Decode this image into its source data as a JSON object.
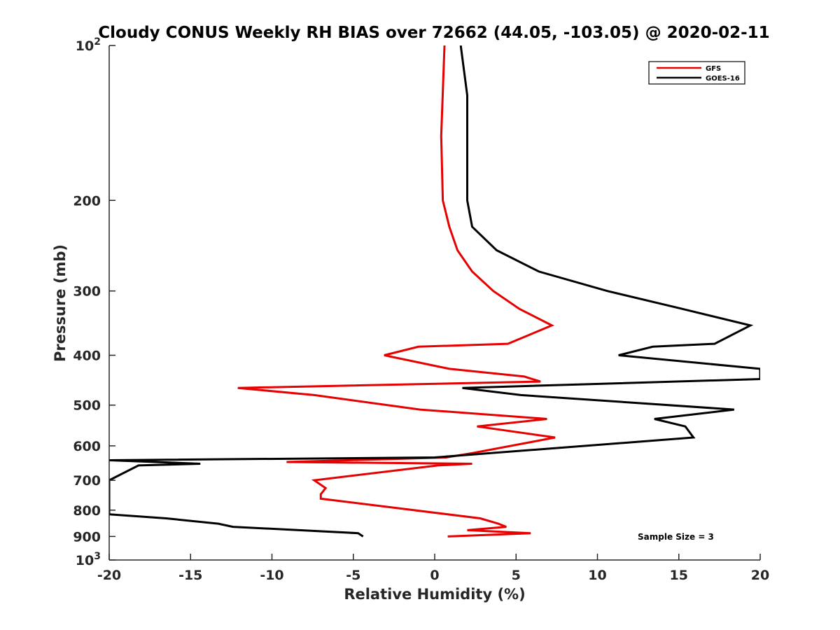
{
  "chart_data": {
    "type": "line",
    "title": "Cloudy CONUS Weekly RH BIAS over 72662 (44.05, -103.05) @ 2020-02-11",
    "xlabel": "Relative Humidity (%)",
    "ylabel": "Pressure (mb)",
    "xlim": [
      -20,
      20
    ],
    "ylim": [
      100,
      1000
    ],
    "y_scale": "log",
    "y_reversed": true,
    "grid": false,
    "legend_position": "top-right",
    "x_ticks": [
      "-20",
      "-15",
      "-10",
      "-5",
      "0",
      "5",
      "10",
      "15",
      "20"
    ],
    "x_tick_values": [
      -20,
      -15,
      -10,
      -5,
      0,
      5,
      10,
      15,
      20
    ],
    "y_ticks": [
      {
        "value": 100,
        "base": "10",
        "exp": "2"
      },
      {
        "value": 200,
        "label": "200"
      },
      {
        "value": 300,
        "label": "300"
      },
      {
        "value": 400,
        "label": "400"
      },
      {
        "value": 500,
        "label": "500"
      },
      {
        "value": 600,
        "label": "600"
      },
      {
        "value": 700,
        "label": "700"
      },
      {
        "value": 800,
        "label": "800"
      },
      {
        "value": 900,
        "label": "900"
      },
      {
        "value": 1000,
        "base": "10",
        "exp": "3"
      }
    ],
    "annotation": "Sample Size = 3",
    "series": [
      {
        "name": "GFS",
        "color": "#e60000",
        "points": [
          [
            0.6,
            100
          ],
          [
            0.4,
            150
          ],
          [
            0.5,
            200
          ],
          [
            0.9,
            225
          ],
          [
            1.4,
            250
          ],
          [
            2.3,
            275
          ],
          [
            3.6,
            300
          ],
          [
            5.2,
            325
          ],
          [
            7.2,
            350
          ],
          [
            4.5,
            380
          ],
          [
            -1.0,
            385
          ],
          [
            -3.1,
            400
          ],
          [
            0.9,
            425
          ],
          [
            5.5,
            440
          ],
          [
            6.5,
            450
          ],
          [
            -12.1,
            463
          ],
          [
            -7.4,
            478
          ],
          [
            -0.9,
            510
          ],
          [
            6.9,
            532
          ],
          [
            2.6,
            550
          ],
          [
            7.4,
            578
          ],
          [
            2.3,
            620
          ],
          [
            0.7,
            632
          ],
          [
            -9.1,
            645
          ],
          [
            2.3,
            650
          ],
          [
            0.2,
            655
          ],
          [
            -7.4,
            700
          ],
          [
            -6.7,
            725
          ],
          [
            -7.0,
            745
          ],
          [
            -7.0,
            760
          ],
          [
            2.8,
            830
          ],
          [
            3.9,
            850
          ],
          [
            4.4,
            862
          ],
          [
            2.0,
            875
          ],
          [
            5.9,
            887
          ],
          [
            0.8,
            900
          ]
        ]
      },
      {
        "name": "GOES-16",
        "color": "#000000",
        "points": [
          [
            1.6,
            100
          ],
          [
            2.0,
            125
          ],
          [
            2.0,
            200
          ],
          [
            2.3,
            225
          ],
          [
            3.8,
            250
          ],
          [
            6.4,
            275
          ],
          [
            10.6,
            300
          ],
          [
            15.2,
            325
          ],
          [
            19.4,
            350
          ],
          [
            17.2,
            380
          ],
          [
            13.4,
            385
          ],
          [
            11.3,
            400
          ],
          [
            20.0,
            425
          ],
          [
            20.0,
            445
          ],
          [
            1.7,
            463
          ],
          [
            5.3,
            478
          ],
          [
            18.4,
            510
          ],
          [
            13.5,
            532
          ],
          [
            15.4,
            550
          ],
          [
            15.9,
            578
          ],
          [
            0.0,
            632
          ],
          [
            -20.0,
            640
          ],
          [
            -14.4,
            650
          ],
          [
            -18.2,
            655
          ],
          [
            -20.0,
            700
          ],
          [
            -20.0,
            815
          ],
          [
            -16.5,
            830
          ],
          [
            -13.3,
            850
          ],
          [
            -12.4,
            862
          ],
          [
            -4.7,
            887
          ],
          [
            -4.4,
            900
          ]
        ]
      }
    ]
  }
}
